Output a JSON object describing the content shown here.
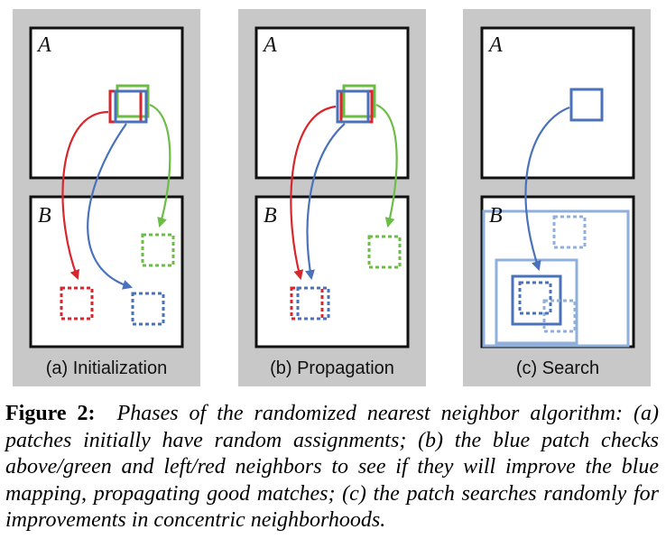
{
  "panels": [
    {
      "label": "(a) Initialization",
      "top_letter": "A",
      "bottom_letter": "B"
    },
    {
      "label": "(b) Propagation",
      "top_letter": "A",
      "bottom_letter": "B"
    },
    {
      "label": "(c) Search",
      "top_letter": "A",
      "bottom_letter": "B"
    }
  ],
  "caption": {
    "label": "Figure 2:",
    "text": "Phases of the randomized nearest neighbor algorithm: (a) patches initially have random assignments; (b) the blue patch checks above/green and left/red neighbors to see if they will improve the blue mapping, propagating good matches; (c) the patch searches randomly for improvements in concentric neighborhoods."
  },
  "colors": {
    "panel_background": "#c8c8c8",
    "red": "#d8262c",
    "green": "#6cbd45",
    "blue": "#4a72bb",
    "light_blue": "#8fb0dd"
  }
}
